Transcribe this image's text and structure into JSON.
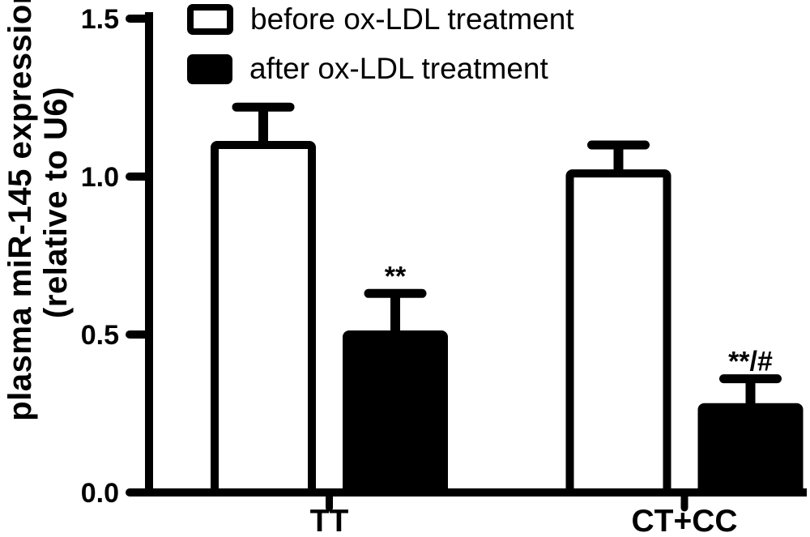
{
  "figure": {
    "background": "#ffffff",
    "ink": "#000000"
  },
  "chart_data": {
    "type": "bar",
    "title": "",
    "ylabel_line1": "plasma miR-145 expression",
    "ylabel_line2": "(relative to U6)",
    "xlabel": "",
    "categories": [
      "TT",
      "CT+CC"
    ],
    "series": [
      {
        "name": "before ox-LDL treatment",
        "fill": "#ffffff",
        "values": [
          1.1,
          1.01
        ],
        "errors": [
          0.12,
          0.09
        ],
        "annotations": [
          "",
          ""
        ]
      },
      {
        "name": "after ox-LDL treatment",
        "fill": "#000000",
        "values": [
          0.5,
          0.27
        ],
        "errors": [
          0.13,
          0.09
        ],
        "annotations": [
          "**",
          "**/#"
        ]
      }
    ],
    "error_direction": "up",
    "yticks": [
      0.0,
      0.5,
      1.0,
      1.5
    ],
    "ytick_labels": [
      "0.0",
      "0.5",
      "1.0",
      "1.5"
    ],
    "ylim": [
      0,
      1.5
    ],
    "grid": false,
    "legend_position": "top-left"
  }
}
